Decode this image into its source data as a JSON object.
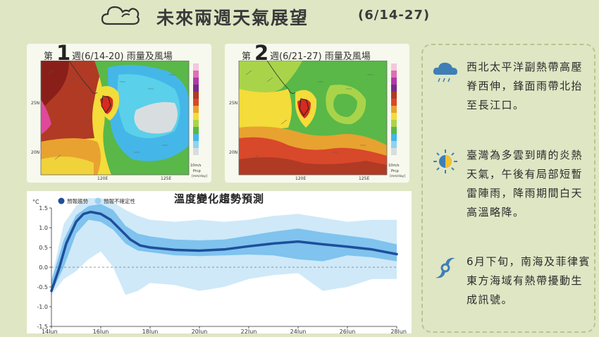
{
  "header": {
    "title": "未來兩週天氣展望",
    "date_range": "(6/14-27)"
  },
  "maps": [
    {
      "prefix": "第",
      "number": "1",
      "suffix": "週(6/14-20) 雨量及風場"
    },
    {
      "prefix": "第",
      "number": "2",
      "suffix": "週(6/21-27) 雨量及風場"
    }
  ],
  "map_labels": {
    "lat_25": "25N",
    "lat_20": "20N",
    "lon_120": "120E",
    "lon_125": "125E",
    "wind_unit": "10m/s",
    "precip_label": "Prcp",
    "precip_unit": "[mm/day]"
  },
  "chart_data": {
    "type": "line",
    "title": "溫度變化趨勢預測",
    "y_unit": "°C",
    "legend": [
      {
        "label": "預報趨勢",
        "color": "#1f4e9a"
      },
      {
        "label": "預報不確定性",
        "color": "#9ccff0"
      }
    ],
    "legend_placement": "top-left",
    "x_ticks": [
      "14Jun",
      "16Jun",
      "18Jun",
      "20Jun",
      "22Jun",
      "24Jun",
      "26Jun",
      "28Jun"
    ],
    "y_ticks": [
      "1.5",
      "1.0",
      "0.5",
      "0.0",
      "-0.5",
      "-1.0",
      "-1.5"
    ],
    "ylim": [
      -1.5,
      1.5
    ],
    "xlim_days": [
      14,
      28
    ],
    "series": [
      {
        "name": "預報趨勢",
        "x": [
          14,
          14.3,
          14.6,
          15,
          15.3,
          15.6,
          16,
          16.4,
          16.8,
          17.2,
          17.6,
          18,
          19,
          20,
          21,
          22,
          23,
          24,
          25,
          26,
          27,
          28
        ],
        "y": [
          -0.6,
          -0.05,
          0.6,
          1.15,
          1.35,
          1.4,
          1.35,
          1.2,
          0.95,
          0.7,
          0.55,
          0.5,
          0.44,
          0.42,
          0.45,
          0.53,
          0.6,
          0.65,
          0.58,
          0.52,
          0.45,
          0.33
        ]
      }
    ],
    "uncertainty_inner": {
      "x": [
        14,
        14.5,
        15,
        15.5,
        16,
        16.5,
        17,
        17.5,
        18,
        19,
        20,
        21,
        22,
        23,
        24,
        25,
        26,
        27,
        28
      ],
      "upper": [
        -0.35,
        0.7,
        1.32,
        1.55,
        1.6,
        1.45,
        1.05,
        0.85,
        0.78,
        0.7,
        0.68,
        0.7,
        0.8,
        0.9,
        0.98,
        0.88,
        0.8,
        0.72,
        0.58
      ],
      "lower": [
        -0.65,
        0.0,
        0.85,
        1.2,
        1.15,
        0.95,
        0.6,
        0.42,
        0.38,
        0.3,
        0.28,
        0.3,
        0.32,
        0.3,
        0.2,
        0.15,
        0.3,
        0.25,
        0.15
      ]
    },
    "uncertainty_outer": {
      "x": [
        14,
        14.5,
        15,
        15.5,
        16,
        16.5,
        17,
        17.5,
        18,
        19,
        20,
        21,
        22,
        23,
        24,
        25,
        26,
        27,
        28
      ],
      "upper": [
        -0.3,
        1.1,
        1.55,
        1.75,
        1.75,
        1.65,
        1.45,
        1.3,
        1.2,
        1.15,
        1.2,
        1.15,
        1.2,
        1.3,
        1.35,
        1.25,
        1.15,
        1.2,
        1.2
      ],
      "lower": [
        -0.7,
        -0.3,
        -0.1,
        0.2,
        0.4,
        0.0,
        -0.7,
        -0.6,
        -0.4,
        -0.45,
        -0.6,
        -0.5,
        -0.3,
        -0.2,
        -0.15,
        -0.6,
        -0.5,
        -0.3,
        -0.3
      ]
    }
  },
  "side_items": [
    {
      "icon": "rain-cloud-icon",
      "text": "西北太平洋副熱帶高壓脊西伸，鋒面雨帶北抬至長江口。"
    },
    {
      "icon": "sun-cloud-icon",
      "text": "臺灣為多雲到晴的炎熱天氣，午後有局部短暫雷陣雨，降雨期間白天高溫略降。"
    },
    {
      "icon": "typhoon-icon",
      "text": "6月下旬，南海及菲律賓東方海域有熱帶擾動生成訊號。"
    }
  ],
  "colors": {
    "background": "#dfe6c4",
    "trend_line": "#1f4e9a",
    "uncertainty_inner": "#7fc3ee",
    "uncertainty_outer": "#cfe9f8"
  }
}
